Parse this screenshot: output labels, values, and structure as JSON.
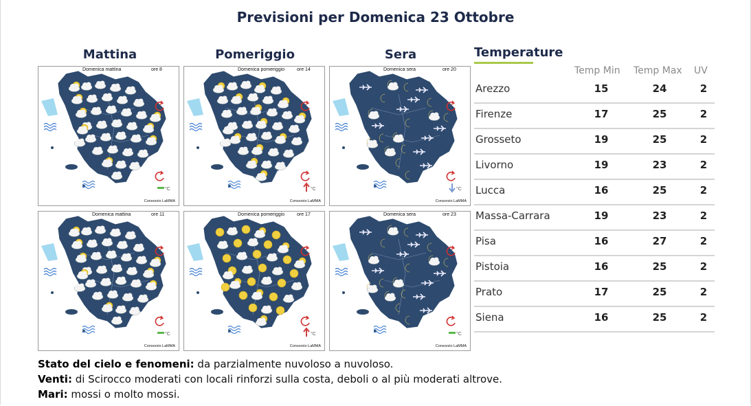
{
  "title": "Previsioni per Domenica 23 Ottobre",
  "columns": [
    "Mattina",
    "Pomeriggio",
    "Sera"
  ],
  "maps": [
    {
      "label": "Domenica mattina",
      "hour": "ore 8",
      "period": "morning",
      "temp_trend": "stable",
      "credit": "Consorzio LaMMA"
    },
    {
      "label": "Domenica pomeriggio",
      "hour": "ore 14",
      "period": "afternoon",
      "temp_trend": "up",
      "credit": "Consorzio LaMMA"
    },
    {
      "label": "Domenica sera",
      "hour": "ore 20",
      "period": "evening",
      "temp_trend": "down",
      "credit": "Consorzio LaMMA"
    },
    {
      "label": "Domenica mattina",
      "hour": "ore 11",
      "period": "morning",
      "temp_trend": "stable",
      "credit": "Consorzio LaMMA"
    },
    {
      "label": "Domenica pomeriggio",
      "hour": "ore 17",
      "period": "afternoon",
      "temp_trend": "up",
      "credit": "Consorzio LaMMA"
    },
    {
      "label": "Domenica sera",
      "hour": "ore 23",
      "period": "evening",
      "temp_trend": "stable",
      "credit": "Consorzio LaMMA"
    }
  ],
  "temperature": {
    "title": "Temperature",
    "headers": [
      "Temp Min",
      "Temp Max",
      "UV"
    ],
    "rows": [
      {
        "city": "Arezzo",
        "min": "15",
        "max": "24",
        "uv": "2"
      },
      {
        "city": "Firenze",
        "min": "17",
        "max": "25",
        "uv": "2"
      },
      {
        "city": "Grosseto",
        "min": "19",
        "max": "25",
        "uv": "2"
      },
      {
        "city": "Livorno",
        "min": "19",
        "max": "23",
        "uv": "2"
      },
      {
        "city": "Lucca",
        "min": "16",
        "max": "25",
        "uv": "2"
      },
      {
        "city": "Massa-Carrara",
        "min": "19",
        "max": "23",
        "uv": "2"
      },
      {
        "city": "Pisa",
        "min": "16",
        "max": "27",
        "uv": "2"
      },
      {
        "city": "Pistoia",
        "min": "16",
        "max": "25",
        "uv": "2"
      },
      {
        "city": "Prato",
        "min": "17",
        "max": "25",
        "uv": "2"
      },
      {
        "city": "Siena",
        "min": "16",
        "max": "25",
        "uv": "2"
      }
    ]
  },
  "summary": [
    {
      "label": "Stato del cielo e fenomeni:",
      "text": " da parzialmente nuvoloso a nuvoloso."
    },
    {
      "label": "Venti:",
      "text": " di Scirocco moderati con locali rinforzi sulla costa, deboli o al più moderati altrove."
    },
    {
      "label": "Mari:",
      "text": " mossi o molto mossi."
    }
  ],
  "colors": {
    "heading": "#1e2a4a",
    "land": "#2e4a6e",
    "sea": "#ffffff",
    "accent_line": "#a8c84a",
    "sun": "#f0d040",
    "moon": "#f2e6a0",
    "trend_up": "#d04040",
    "trend_down": "#7a9ad0",
    "trend_stable": "#5ab84a"
  }
}
